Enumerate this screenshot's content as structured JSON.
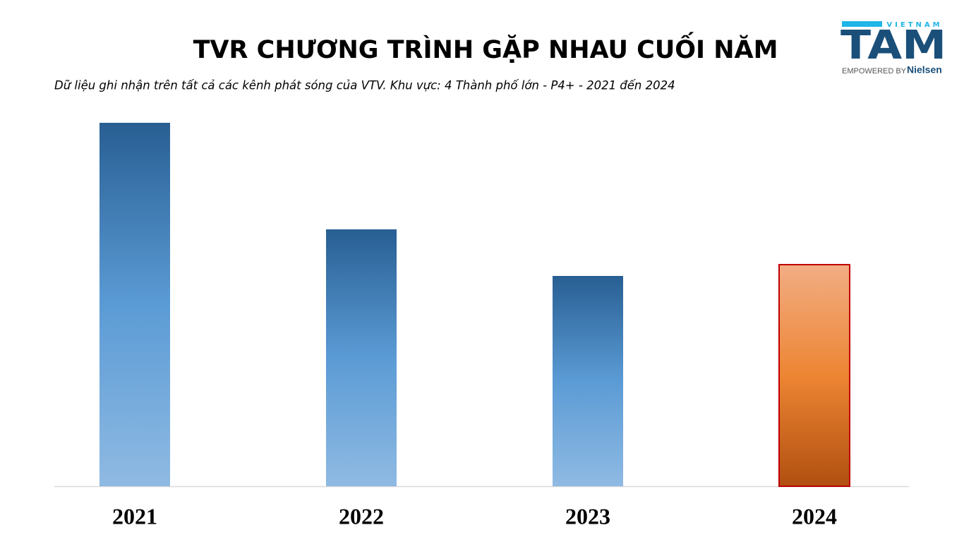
{
  "chart_data": {
    "type": "bar",
    "title": "TVR CHƯƠNG TRÌNH GẶP NHAU CUỐI NĂM",
    "subtitle": "Dữ liệu ghi nhận trên tất cả các kênh phát sóng của VTV. Khu vực: 4 Thành phố lớn - P4+ - 2021 đến 2024",
    "categories": [
      "2021",
      "2022",
      "2023",
      "2024"
    ],
    "values": [
      5.15,
      3.64,
      2.98,
      3.14
    ],
    "colors": [
      [
        "#285f93",
        "#5b9bd5",
        "#8fbae3"
      ],
      [
        "#285f93",
        "#5b9bd5",
        "#8fbae3"
      ],
      [
        "#285f93",
        "#5b9bd5",
        "#8fbae3"
      ],
      [
        "#f2ad84",
        "#ed8533",
        "#b04f10"
      ]
    ],
    "border_colors": [
      null,
      null,
      null,
      "#c00000"
    ],
    "ylim": [
      0,
      5.5
    ]
  },
  "logo": {
    "country": "VIETNAM",
    "brand": "TAM",
    "tagline": "EMPOWERED BY",
    "partner": "Nielsen"
  }
}
